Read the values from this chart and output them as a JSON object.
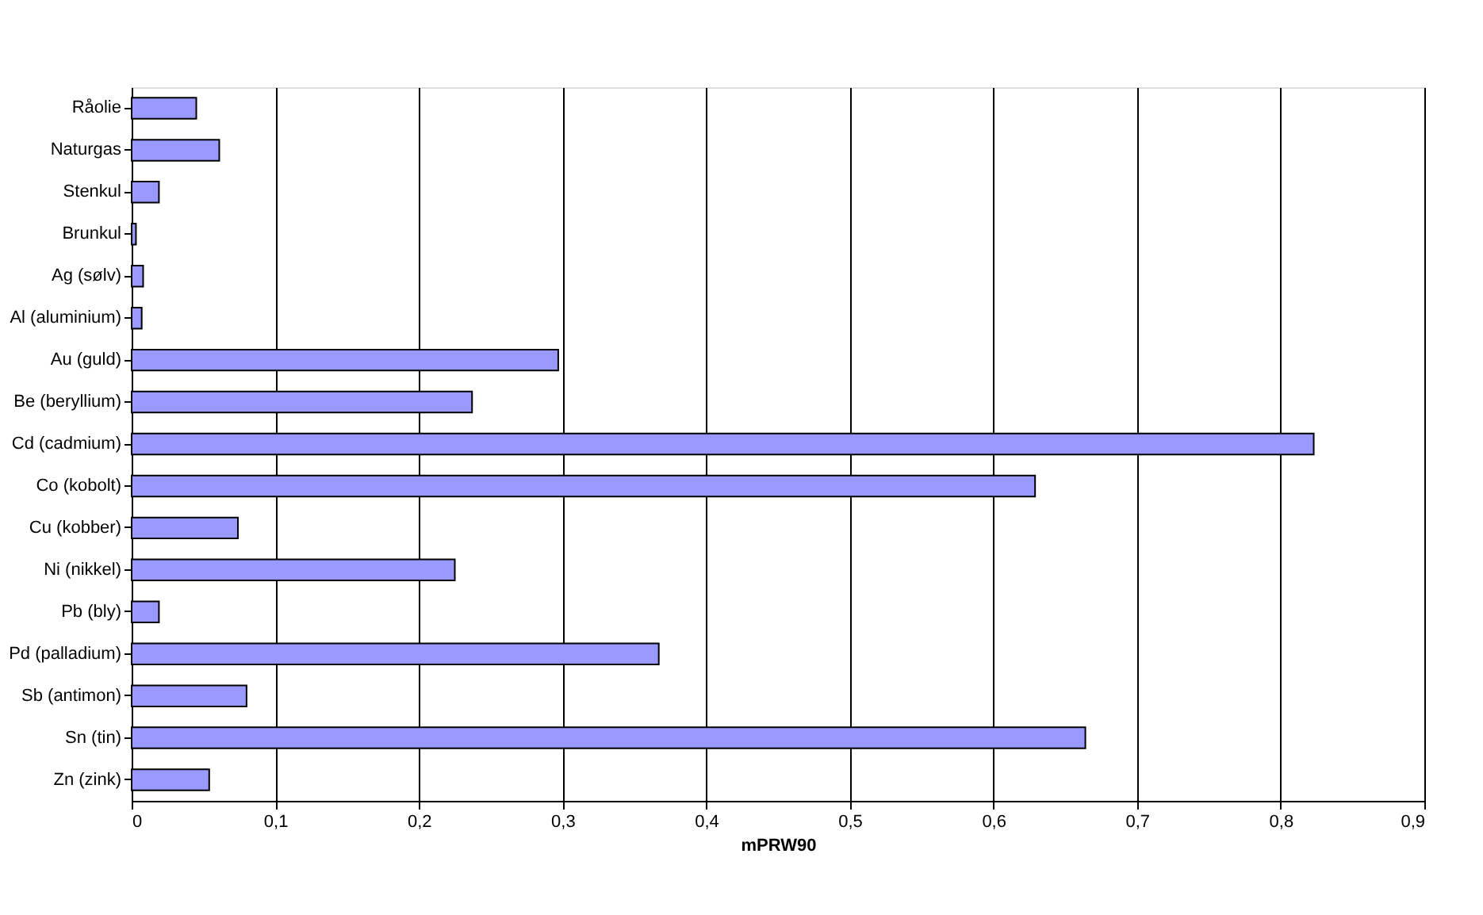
{
  "chart_data": {
    "type": "bar",
    "orientation": "horizontal",
    "xlabel": "mPRW90",
    "categories": [
      "Råolie",
      "Naturgas",
      "Stenkul",
      "Brunkul",
      "Ag (sølv)",
      "Al (aluminium)",
      "Au (guld)",
      "Be (beryllium)",
      "Cd (cadmium)",
      "Co (kobolt)",
      "Cu (kobber)",
      "Ni (nikkel)",
      "Pb (bly)",
      "Pd (palladium)",
      "Sb (antimon)",
      "Sn (tin)",
      "Zn (zink)"
    ],
    "values": [
      0.045,
      0.061,
      0.019,
      0.003,
      0.008,
      0.007,
      0.297,
      0.237,
      0.823,
      0.629,
      0.074,
      0.225,
      0.019,
      0.367,
      0.08,
      0.664,
      0.054
    ],
    "color": "#9999ff",
    "xlim": [
      0,
      0.9
    ],
    "xticks": [
      {
        "value": 0,
        "label": "0"
      },
      {
        "value": 0.1,
        "label": "0,1"
      },
      {
        "value": 0.2,
        "label": "0,2"
      },
      {
        "value": 0.3,
        "label": "0,3"
      },
      {
        "value": 0.4,
        "label": "0,4"
      },
      {
        "value": 0.5,
        "label": "0,5"
      },
      {
        "value": 0.6,
        "label": "0,6"
      },
      {
        "value": 0.7,
        "label": "0,7"
      },
      {
        "value": 0.8,
        "label": "0,8"
      },
      {
        "value": 0.9,
        "label": "0,9"
      }
    ],
    "grid": "x"
  }
}
